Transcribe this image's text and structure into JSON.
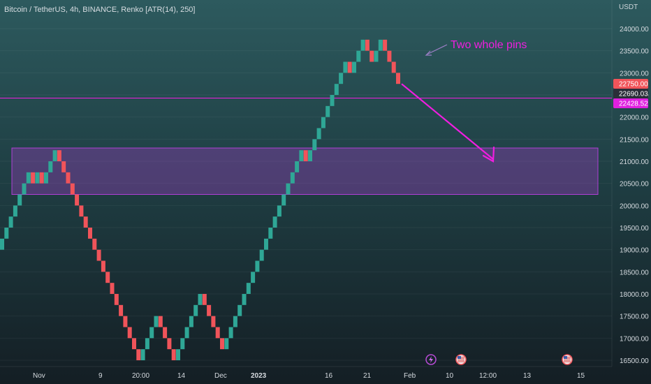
{
  "header": {
    "title": "Bitcoin / TetherUS, 4h, BINANCE, Renko [ATR(14), 250]",
    "axis_unit": "USDT"
  },
  "colors": {
    "up": "#2fa796",
    "down": "#f0545a",
    "zone": "#b03fd6",
    "annotation": "#f01ee0",
    "pin": "#9c7fc6"
  },
  "price_badges": [
    {
      "value": "22750.00",
      "bg": "#f0545a",
      "fg": "#ffffff"
    },
    {
      "value": "22690.03",
      "bg": "#2a2e39",
      "fg": "#ffffff"
    },
    {
      "value": "22428.52",
      "bg": "#e020e0",
      "fg": "#ffffff"
    }
  ],
  "annotation": {
    "text": "Two whole pins"
  },
  "event_icons": [
    "lightning-icon",
    "us-flag-icon",
    "us-flag-icon"
  ],
  "chart_data": {
    "type": "renko",
    "brick_size": 250,
    "y_ticks": [
      24000,
      23500,
      23000,
      22500,
      22000,
      21500,
      21000,
      20500,
      20000,
      19500,
      19000,
      18500,
      18000,
      17500,
      17000,
      16500
    ],
    "y_tick_labels": [
      "24000.00",
      "23500.00",
      "23000.00",
      "22500.00",
      "22000.00",
      "21500.00",
      "21000.00",
      "20500.00",
      "20000.00",
      "19500.00",
      "19000.00",
      "18500.00",
      "18000.00",
      "17500.00",
      "17000.00",
      "16500.00"
    ],
    "x_labels": [
      "Nov",
      "9",
      "20:00",
      "14",
      "Dec",
      "2023",
      "16",
      "21",
      "Feb",
      "10",
      "12:00",
      "13",
      "15"
    ],
    "x_labels_bold": [
      "2023"
    ],
    "bricks": [
      {
        "open": 19000,
        "close": 19250
      },
      {
        "open": 19250,
        "close": 19500
      },
      {
        "open": 19500,
        "close": 19750
      },
      {
        "open": 19750,
        "close": 20000
      },
      {
        "open": 20000,
        "close": 20250
      },
      {
        "open": 20250,
        "close": 20500
      },
      {
        "open": 20500,
        "close": 20750
      },
      {
        "open": 20750,
        "close": 20500
      },
      {
        "open": 20500,
        "close": 20750
      },
      {
        "open": 20750,
        "close": 20500
      },
      {
        "open": 20500,
        "close": 20750
      },
      {
        "open": 20750,
        "close": 21000
      },
      {
        "open": 21000,
        "close": 21250
      },
      {
        "open": 21250,
        "close": 21000
      },
      {
        "open": 21000,
        "close": 20750
      },
      {
        "open": 20750,
        "close": 20500
      },
      {
        "open": 20500,
        "close": 20250
      },
      {
        "open": 20250,
        "close": 20000
      },
      {
        "open": 20000,
        "close": 19750
      },
      {
        "open": 19750,
        "close": 19500
      },
      {
        "open": 19500,
        "close": 19250
      },
      {
        "open": 19250,
        "close": 19000
      },
      {
        "open": 19000,
        "close": 18750
      },
      {
        "open": 18750,
        "close": 18500
      },
      {
        "open": 18500,
        "close": 18250
      },
      {
        "open": 18250,
        "close": 18000
      },
      {
        "open": 18000,
        "close": 17750
      },
      {
        "open": 17750,
        "close": 17500
      },
      {
        "open": 17500,
        "close": 17250
      },
      {
        "open": 17250,
        "close": 17000
      },
      {
        "open": 17000,
        "close": 16750
      },
      {
        "open": 16750,
        "close": 16500
      },
      {
        "open": 16500,
        "close": 16750
      },
      {
        "open": 16750,
        "close": 17000
      },
      {
        "open": 17000,
        "close": 17250
      },
      {
        "open": 17250,
        "close": 17500
      },
      {
        "open": 17500,
        "close": 17250
      },
      {
        "open": 17250,
        "close": 17000
      },
      {
        "open": 17000,
        "close": 16750
      },
      {
        "open": 16750,
        "close": 16500
      },
      {
        "open": 16500,
        "close": 16750
      },
      {
        "open": 16750,
        "close": 17000
      },
      {
        "open": 17000,
        "close": 17250
      },
      {
        "open": 17250,
        "close": 17500
      },
      {
        "open": 17500,
        "close": 17750
      },
      {
        "open": 17750,
        "close": 18000
      },
      {
        "open": 18000,
        "close": 17750
      },
      {
        "open": 17750,
        "close": 17500
      },
      {
        "open": 17500,
        "close": 17250
      },
      {
        "open": 17250,
        "close": 17000
      },
      {
        "open": 17000,
        "close": 16750
      },
      {
        "open": 16750,
        "close": 17000
      },
      {
        "open": 17000,
        "close": 17250
      },
      {
        "open": 17250,
        "close": 17500
      },
      {
        "open": 17500,
        "close": 17750
      },
      {
        "open": 17750,
        "close": 18000
      },
      {
        "open": 18000,
        "close": 18250
      },
      {
        "open": 18250,
        "close": 18500
      },
      {
        "open": 18500,
        "close": 18750
      },
      {
        "open": 18750,
        "close": 19000
      },
      {
        "open": 19000,
        "close": 19250
      },
      {
        "open": 19250,
        "close": 19500
      },
      {
        "open": 19500,
        "close": 19750
      },
      {
        "open": 19750,
        "close": 20000
      },
      {
        "open": 20000,
        "close": 20250
      },
      {
        "open": 20250,
        "close": 20500
      },
      {
        "open": 20500,
        "close": 20750
      },
      {
        "open": 20750,
        "close": 21000
      },
      {
        "open": 21000,
        "close": 21250
      },
      {
        "open": 21250,
        "close": 21000
      },
      {
        "open": 21000,
        "close": 21250
      },
      {
        "open": 21250,
        "close": 21500
      },
      {
        "open": 21500,
        "close": 21750
      },
      {
        "open": 21750,
        "close": 22000
      },
      {
        "open": 22000,
        "close": 22250
      },
      {
        "open": 22250,
        "close": 22500
      },
      {
        "open": 22500,
        "close": 22750
      },
      {
        "open": 22750,
        "close": 23000
      },
      {
        "open": 23000,
        "close": 23250
      },
      {
        "open": 23250,
        "close": 23000
      },
      {
        "open": 23000,
        "close": 23250
      },
      {
        "open": 23250,
        "close": 23500
      },
      {
        "open": 23500,
        "close": 23750
      },
      {
        "open": 23750,
        "close": 23500
      },
      {
        "open": 23500,
        "close": 23250
      },
      {
        "open": 23250,
        "close": 23500
      },
      {
        "open": 23500,
        "close": 23750
      },
      {
        "open": 23750,
        "close": 23500
      },
      {
        "open": 23500,
        "close": 23250
      },
      {
        "open": 23250,
        "close": 23000
      },
      {
        "open": 23000,
        "close": 22750
      }
    ],
    "support_zone": {
      "from": 20250,
      "to": 21300
    },
    "horizontal_line": 22428.52,
    "projected_target": 21000
  }
}
